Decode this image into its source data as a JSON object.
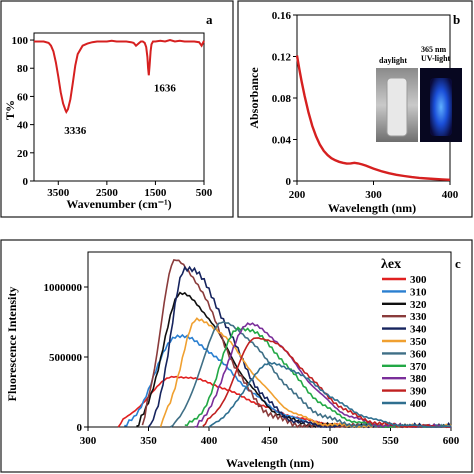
{
  "chart_data": [
    {
      "id": "a",
      "type": "line",
      "panel_label": "a",
      "xlabel": "Wavenumber (cm⁻¹)",
      "ylabel": "T%",
      "xlim": [
        4000,
        500
      ],
      "ylim": [
        0,
        105
      ],
      "xticks": [
        3500,
        2500,
        1500,
        500
      ],
      "yticks": [
        0,
        20,
        40,
        60,
        80,
        100
      ],
      "color": "#d62020",
      "series": [
        {
          "x": [
            4000,
            3900,
            3800,
            3700,
            3650,
            3600,
            3550,
            3500,
            3450,
            3400,
            3350,
            3336,
            3300,
            3250,
            3200,
            3150,
            3100,
            3000,
            2900,
            2800,
            2700,
            2600,
            2500,
            2400,
            2300,
            2200,
            2100,
            2000,
            1950,
            1900,
            1850,
            1800,
            1760,
            1720,
            1690,
            1665,
            1650,
            1636,
            1620,
            1600,
            1580,
            1550,
            1500,
            1400,
            1300,
            1200,
            1100,
            1000,
            900,
            800,
            700,
            600,
            550,
            500
          ],
          "y": [
            99,
            99,
            99,
            98,
            96,
            92,
            84,
            74,
            63,
            55,
            50,
            49,
            51,
            58,
            70,
            82,
            90,
            96,
            97.5,
            98.5,
            99,
            99,
            99,
            99.5,
            99,
            99,
            99,
            98.5,
            98,
            96,
            97.5,
            99,
            99,
            98,
            95,
            88,
            80,
            75,
            82,
            92,
            97,
            99,
            99,
            99.5,
            99,
            100,
            99,
            99.5,
            99,
            99,
            99,
            98.5,
            96,
            99.5
          ]
        }
      ],
      "annotations": [
        {
          "text": "3336",
          "x": 3336,
          "y": 49
        },
        {
          "text": "1636",
          "x": 1636,
          "y": 75
        }
      ]
    },
    {
      "id": "b",
      "type": "line",
      "panel_label": "b",
      "xlabel": "Wavelength (nm)",
      "ylabel": "Absorbance",
      "xlim": [
        200,
        400
      ],
      "ylim": [
        0,
        0.16
      ],
      "xticks": [
        200,
        300,
        400
      ],
      "yticks": [
        0,
        0.04,
        0.08,
        0.12,
        0.16
      ],
      "color": "#d62020",
      "series": [
        {
          "x": [
            200,
            203,
            206,
            210,
            215,
            220,
            225,
            230,
            235,
            240,
            245,
            250,
            255,
            260,
            265,
            270,
            275,
            280,
            285,
            290,
            300,
            310,
            320,
            330,
            340,
            350,
            360,
            370,
            380,
            390,
            400
          ],
          "y": [
            0.121,
            0.108,
            0.096,
            0.082,
            0.066,
            0.053,
            0.043,
            0.035,
            0.029,
            0.025,
            0.022,
            0.02,
            0.0185,
            0.0175,
            0.0168,
            0.017,
            0.0175,
            0.017,
            0.016,
            0.0148,
            0.012,
            0.0095,
            0.0075,
            0.006,
            0.0048,
            0.0038,
            0.003,
            0.0024,
            0.0019,
            0.0015,
            0.0012
          ]
        }
      ],
      "inset": {
        "label_daylight": "daylight",
        "label_uv_1": "365 nm",
        "label_uv_2": "UV-light"
      }
    },
    {
      "id": "c",
      "type": "line",
      "panel_label": "c",
      "xlabel": "Wavelength (nm)",
      "ylabel": "Fluorescence Intensity",
      "xlim": [
        300,
        600
      ],
      "ylim": [
        0,
        1250000
      ],
      "xticks": [
        300,
        350,
        400,
        450,
        500,
        550,
        600
      ],
      "yticks": [
        0,
        500000,
        1000000
      ],
      "legend_title": "λex",
      "legend_position": "right",
      "series": [
        {
          "name": "300",
          "color": "#e02020",
          "start": 325,
          "peak": 372,
          "amp": 360000,
          "s1": 22,
          "s2": 55
        },
        {
          "name": "310",
          "color": "#2a7fd0",
          "start": 330,
          "peak": 373,
          "amp": 650000,
          "s1": 17,
          "s2": 45
        },
        {
          "name": "320",
          "color": "#101010",
          "start": 340,
          "peak": 376,
          "amp": 945000,
          "s1": 14,
          "s2": 38
        },
        {
          "name": "330",
          "color": "#8a3b3b",
          "start": 345,
          "peak": 372,
          "amp": 1180000,
          "s1": 12,
          "s2": 35
        },
        {
          "name": "340",
          "color": "#16245e",
          "start": 350,
          "peak": 380,
          "amp": 1140000,
          "s1": 11,
          "s2": 36
        },
        {
          "name": "350",
          "color": "#f0a030",
          "start": 360,
          "peak": 390,
          "amp": 760000,
          "s1": 13,
          "s2": 40
        },
        {
          "name": "360",
          "color": "#3f6f86",
          "start": 368,
          "peak": 410,
          "amp": 740000,
          "s1": 16,
          "s2": 40
        },
        {
          "name": "370",
          "color": "#22a845",
          "start": 380,
          "peak": 425,
          "amp": 710000,
          "s1": 16,
          "s2": 40
        },
        {
          "name": "380",
          "color": "#7a2e9a",
          "start": 388,
          "peak": 432,
          "amp": 730000,
          "s1": 17,
          "s2": 40
        },
        {
          "name": "390",
          "color": "#c02020",
          "start": 395,
          "peak": 440,
          "amp": 640000,
          "s1": 18,
          "s2": 40
        },
        {
          "name": "400",
          "color": "#2f6f8f",
          "start": 400,
          "peak": 450,
          "amp": 450000,
          "s1": 20,
          "s2": 42
        }
      ]
    }
  ]
}
